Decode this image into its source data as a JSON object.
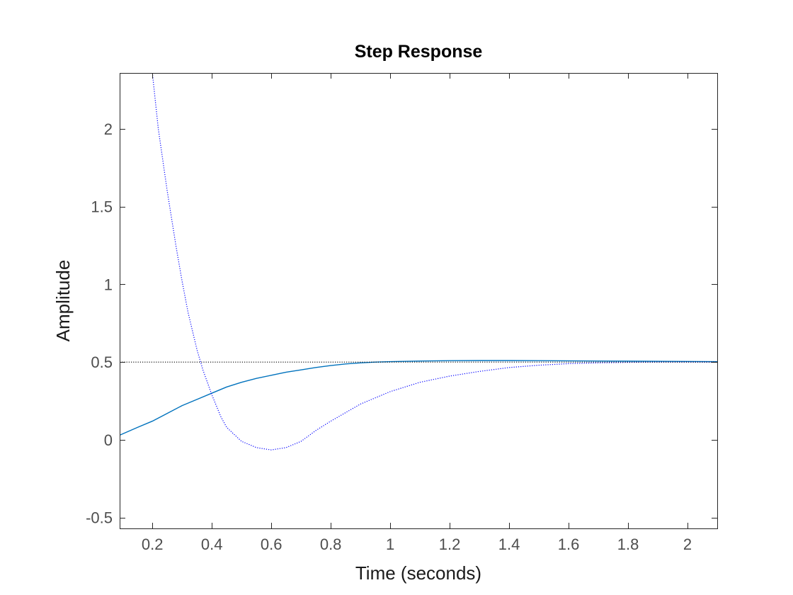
{
  "chart_data": {
    "type": "line",
    "title": "Step Response",
    "xlabel": "Time (seconds)",
    "ylabel": "Amplitude",
    "xlim": [
      0.09,
      2.1
    ],
    "ylim": [
      -0.57,
      2.36
    ],
    "xticks": [
      0.2,
      0.4,
      0.6,
      0.8,
      1,
      1.2,
      1.4,
      1.6,
      1.8,
      2
    ],
    "xtick_labels": [
      "0.2",
      "0.4",
      "0.6",
      "0.8",
      "1",
      "1.2",
      "1.4",
      "1.6",
      "1.8",
      "2"
    ],
    "yticks": [
      -0.5,
      0,
      0.5,
      1,
      1.5,
      2
    ],
    "ytick_labels": [
      "-0.5",
      "0",
      "0.5",
      "1",
      "1.5",
      "2"
    ],
    "grid": false,
    "legend": "none",
    "series": [
      {
        "style": "solid",
        "color": "#0072bd",
        "x": [
          0.09,
          0.15,
          0.2,
          0.25,
          0.3,
          0.35,
          0.4,
          0.45,
          0.5,
          0.55,
          0.6,
          0.65,
          0.7,
          0.75,
          0.8,
          0.85,
          0.9,
          0.95,
          1.0,
          1.1,
          1.2,
          1.3,
          1.4,
          1.5,
          1.6,
          1.7,
          1.8,
          1.9,
          2.0,
          2.1
        ],
        "y": [
          0.03,
          0.08,
          0.12,
          0.17,
          0.22,
          0.26,
          0.3,
          0.34,
          0.37,
          0.395,
          0.415,
          0.435,
          0.45,
          0.465,
          0.478,
          0.488,
          0.495,
          0.5,
          0.503,
          0.507,
          0.509,
          0.51,
          0.51,
          0.509,
          0.508,
          0.507,
          0.506,
          0.505,
          0.504,
          0.503
        ]
      },
      {
        "style": "dotted",
        "color": "#0000ff",
        "x": [
          0.2,
          0.22,
          0.25,
          0.28,
          0.3,
          0.32,
          0.35,
          0.37,
          0.4,
          0.43,
          0.45,
          0.5,
          0.55,
          0.6,
          0.65,
          0.7,
          0.75,
          0.8,
          0.9,
          1.0,
          1.1,
          1.2,
          1.3,
          1.4,
          1.5,
          1.6,
          1.7,
          1.8,
          1.9,
          2.0,
          2.1
        ],
        "y": [
          2.36,
          2.0,
          1.6,
          1.24,
          1.02,
          0.82,
          0.58,
          0.45,
          0.29,
          0.15,
          0.08,
          -0.01,
          -0.05,
          -0.065,
          -0.05,
          -0.01,
          0.06,
          0.12,
          0.23,
          0.31,
          0.37,
          0.41,
          0.44,
          0.465,
          0.48,
          0.49,
          0.495,
          0.498,
          0.5,
          0.5,
          0.5
        ]
      },
      {
        "style": "dotted",
        "color": "#000000",
        "x": [
          0.09,
          2.1
        ],
        "y": [
          0.5,
          0.5
        ]
      }
    ]
  }
}
